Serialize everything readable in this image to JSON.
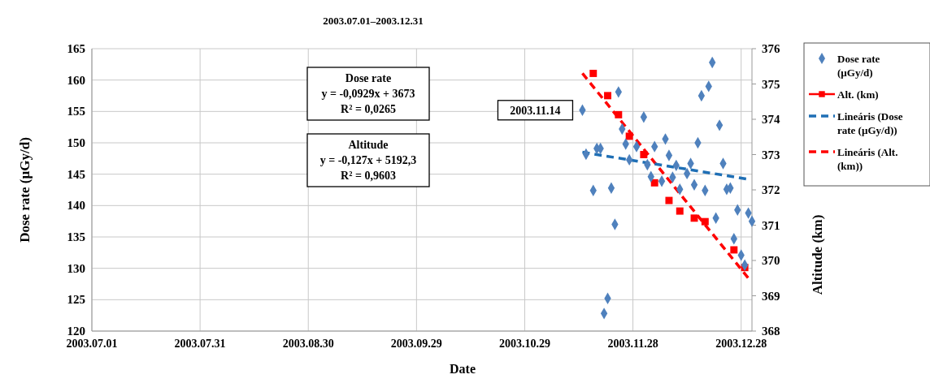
{
  "chart_data": {
    "type": "scatter",
    "title": "2003.07.01–2003.12.31",
    "xlabel": "Date",
    "ylabel": "Dose rate (µGy/d)",
    "y2label": "Altitude (km)",
    "xlim": [
      "2003-07-01",
      "2003-12-31"
    ],
    "xticks": [
      {
        "value": "2003-07-01",
        "label": "2003.07.01"
      },
      {
        "value": "2003-07-31",
        "label": "2003.07.31"
      },
      {
        "value": "2003-08-30",
        "label": "2003.08.30"
      },
      {
        "value": "2003-09-29",
        "label": "2003.09.29"
      },
      {
        "value": "2003-10-29",
        "label": "2003.10.29"
      },
      {
        "value": "2003-11-28",
        "label": "2003.11.28"
      },
      {
        "value": "2003-12-28",
        "label": "2003.12.28"
      }
    ],
    "ylim": [
      120,
      165
    ],
    "yticks": [
      120,
      125,
      130,
      135,
      140,
      145,
      150,
      155,
      160,
      165
    ],
    "y2lim": [
      368,
      376
    ],
    "y2ticks": [
      368,
      369,
      370,
      371,
      372,
      373,
      374,
      375,
      376
    ],
    "grid": true,
    "legend": "right",
    "annotations": [
      {
        "text": "2003.11.14",
        "x": "2003-11-14",
        "y": 155.2
      },
      "Dose rate\ny = -0,0929x + 3673\nR² = 0,0265",
      "Altitude\ny = -0,127x + 5192,3\nR² = 0,9603"
    ],
    "series": [
      {
        "name": "Dose rate (µGy/d)",
        "marker": "diamond",
        "color": "#4f81bd",
        "x": [
          "2003-11-14",
          "2003-11-15",
          "2003-11-17",
          "2003-11-18",
          "2003-11-19",
          "2003-11-20",
          "2003-11-21",
          "2003-11-22",
          "2003-11-23",
          "2003-11-24",
          "2003-11-25",
          "2003-11-26",
          "2003-11-27",
          "2003-11-29",
          "2003-12-01",
          "2003-12-02",
          "2003-12-03",
          "2003-12-04",
          "2003-12-06",
          "2003-12-07",
          "2003-12-08",
          "2003-12-09",
          "2003-12-10",
          "2003-12-11",
          "2003-12-13",
          "2003-12-14",
          "2003-12-15",
          "2003-12-16",
          "2003-12-17",
          "2003-12-18",
          "2003-12-19",
          "2003-12-20",
          "2003-12-21",
          "2003-12-22",
          "2003-12-23",
          "2003-12-24",
          "2003-12-25",
          "2003-12-26",
          "2003-12-27",
          "2003-12-28",
          "2003-12-29",
          "2003-12-30",
          "2003-12-31"
        ],
        "values": [
          155.2,
          148.2,
          142.4,
          149.1,
          149.1,
          122.8,
          125.2,
          142.8,
          137.0,
          158.1,
          152.2,
          149.8,
          147.3,
          149.4,
          154.1,
          146.5,
          144.6,
          149.4,
          143.9,
          150.6,
          148.0,
          144.5,
          146.4,
          142.6,
          145.1,
          146.7,
          143.3,
          150.0,
          157.5,
          142.4,
          159.0,
          162.8,
          138.0,
          152.8,
          146.7,
          142.6,
          142.8,
          134.7,
          139.3,
          132.1,
          130.5,
          138.8,
          137.5
        ]
      },
      {
        "name": "Alt. (km)",
        "marker": "square",
        "axis": "y2",
        "color": "#ff0000",
        "x": [
          "2003-11-17",
          "2003-11-21",
          "2003-11-24",
          "2003-11-27",
          "2003-12-01",
          "2003-12-04",
          "2003-12-08",
          "2003-12-11",
          "2003-12-15",
          "2003-12-18",
          "2003-12-26",
          "2003-12-29"
        ],
        "values": [
          375.3,
          374.67,
          374.13,
          373.52,
          373.0,
          372.2,
          371.7,
          371.4,
          371.2,
          371.1,
          370.3,
          369.8
        ]
      },
      {
        "name": "Lineáris (Dose rate (µGy/d))",
        "type": "line",
        "line_style": "dashed",
        "color": "#1f6fb5",
        "x": [
          "2003-11-14",
          "2003-12-30"
        ],
        "values": [
          148.5,
          144.2
        ]
      },
      {
        "name": "Lineáris (Alt. (km))",
        "type": "line",
        "line_style": "dashed",
        "axis": "y2",
        "color": "#ff0000",
        "x": [
          "2003-11-14",
          "2003-12-30"
        ],
        "values": [
          375.3,
          369.5
        ]
      }
    ]
  }
}
